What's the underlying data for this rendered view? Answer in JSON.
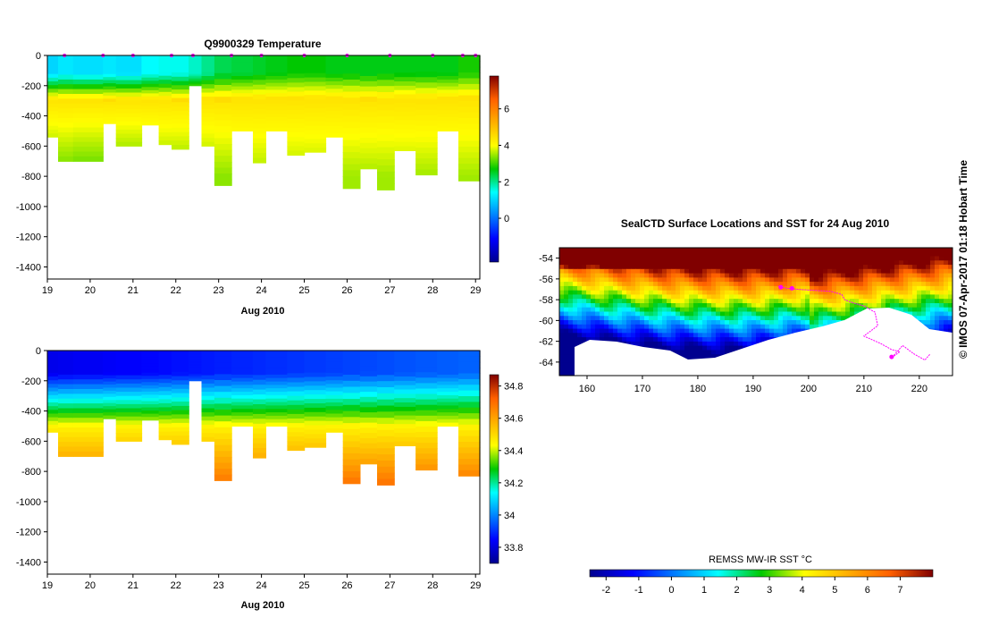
{
  "credit": "© IMOS 07-Apr-2017 01:18 Hobart Time",
  "chart_data": [
    {
      "type": "heatmap",
      "title": "Q9900329  Temperature",
      "xlabel": "Aug 2010",
      "xlim": [
        19,
        29.1
      ],
      "x_ticks": [
        "19",
        "20",
        "21",
        "22",
        "23",
        "24",
        "25",
        "26",
        "27",
        "28",
        "29"
      ],
      "ylim": [
        -1480,
        0
      ],
      "y_ticks": [
        "0",
        "-200",
        "-400",
        "-600",
        "-800",
        "-1000",
        "-1200",
        "-1400"
      ],
      "colorbar": {
        "range": [
          -2.4,
          7.8
        ],
        "ticks": [
          "6",
          "4",
          "2",
          "0"
        ]
      },
      "surface_markers_x": [
        19.4,
        20.3,
        21.0,
        21.9,
        22.4,
        23.3,
        24.0,
        25.0,
        26.0,
        27.0,
        28.0,
        28.7,
        29.0
      ],
      "profiles": [
        {
          "x0": 19.0,
          "x1": 19.25,
          "max_depth": -540,
          "surface": 1.0,
          "deep": 3.0
        },
        {
          "x0": 19.25,
          "x1": 19.6,
          "max_depth": -700,
          "surface": 1.2,
          "deep": 3.1
        },
        {
          "x0": 19.6,
          "x1": 20.3,
          "max_depth": -700,
          "surface": 1.1,
          "deep": 3.0
        },
        {
          "x0": 20.3,
          "x1": 20.6,
          "max_depth": -450,
          "surface": 1.2,
          "deep": 3.1
        },
        {
          "x0": 20.6,
          "x1": 21.2,
          "max_depth": -600,
          "surface": 1.1,
          "deep": 3.0
        },
        {
          "x0": 21.2,
          "x1": 21.6,
          "max_depth": -460,
          "surface": 1.4,
          "deep": 3.1
        },
        {
          "x0": 21.6,
          "x1": 21.9,
          "max_depth": -590,
          "surface": 1.5,
          "deep": 3.2
        },
        {
          "x0": 21.9,
          "x1": 22.3,
          "max_depth": -620,
          "surface": 1.5,
          "deep": 3.2
        },
        {
          "x0": 22.3,
          "x1": 22.6,
          "max_depth": -200,
          "surface": 1.7,
          "deep": 3.0
        },
        {
          "x0": 22.6,
          "x1": 22.9,
          "max_depth": -600,
          "surface": 2.0,
          "deep": 3.3
        },
        {
          "x0": 22.9,
          "x1": 23.3,
          "max_depth": -860,
          "surface": 2.3,
          "deep": 3.4
        },
        {
          "x0": 23.3,
          "x1": 23.8,
          "max_depth": -500,
          "surface": 2.4,
          "deep": 3.5
        },
        {
          "x0": 23.8,
          "x1": 24.1,
          "max_depth": -710,
          "surface": 2.5,
          "deep": 3.5
        },
        {
          "x0": 24.1,
          "x1": 24.6,
          "max_depth": -500,
          "surface": 2.6,
          "deep": 3.5
        },
        {
          "x0": 24.6,
          "x1": 25.0,
          "max_depth": -660,
          "surface": 2.7,
          "deep": 3.5
        },
        {
          "x0": 25.0,
          "x1": 25.5,
          "max_depth": -640,
          "surface": 2.7,
          "deep": 3.5
        },
        {
          "x0": 25.5,
          "x1": 25.9,
          "max_depth": -540,
          "surface": 2.6,
          "deep": 3.5
        },
        {
          "x0": 25.9,
          "x1": 26.3,
          "max_depth": -880,
          "surface": 2.6,
          "deep": 3.5
        },
        {
          "x0": 26.3,
          "x1": 26.7,
          "max_depth": -750,
          "surface": 2.6,
          "deep": 3.5
        },
        {
          "x0": 26.7,
          "x1": 27.1,
          "max_depth": -890,
          "surface": 2.6,
          "deep": 3.5
        },
        {
          "x0": 27.1,
          "x1": 27.6,
          "max_depth": -630,
          "surface": 2.6,
          "deep": 3.5
        },
        {
          "x0": 27.6,
          "x1": 28.1,
          "max_depth": -790,
          "surface": 2.6,
          "deep": 3.5
        },
        {
          "x0": 28.1,
          "x1": 28.6,
          "max_depth": -500,
          "surface": 2.6,
          "deep": 3.5
        },
        {
          "x0": 28.6,
          "x1": 29.1,
          "max_depth": -830,
          "surface": 2.8,
          "deep": 3.5
        }
      ]
    },
    {
      "type": "heatmap",
      "title": "",
      "xlabel": "Aug 2010",
      "xlim": [
        19,
        29.1
      ],
      "x_ticks": [
        "19",
        "20",
        "21",
        "22",
        "23",
        "24",
        "25",
        "26",
        "27",
        "28",
        "29"
      ],
      "ylim": [
        -1480,
        0
      ],
      "y_ticks": [
        "0",
        "-200",
        "-400",
        "-600",
        "-800",
        "-1000",
        "-1200",
        "-1400"
      ],
      "colorbar": {
        "range": [
          33.7,
          34.87
        ],
        "ticks": [
          "34.8",
          "34.6",
          "34.4",
          "34.2",
          "34",
          "33.8"
        ]
      },
      "profiles_ref": "same stations as temperature panel"
    },
    {
      "type": "heatmap",
      "title": "SealCTD Surface Locations and SST for 24 Aug 2010",
      "xlim": [
        155,
        226
      ],
      "x_ticks": [
        "160",
        "170",
        "180",
        "190",
        "200",
        "210",
        "220"
      ],
      "ylim": [
        -65.3,
        -53
      ],
      "y_ticks": [
        "-54",
        "-56",
        "-58",
        "-60",
        "-62",
        "-64"
      ],
      "colorbar": {
        "label": "REMSS MW-IR SST °C",
        "range": [
          -2.5,
          8
        ],
        "ticks": [
          "-2",
          "-1",
          "0",
          "1",
          "2",
          "3",
          "4",
          "5",
          "6",
          "7"
        ]
      }
    }
  ]
}
